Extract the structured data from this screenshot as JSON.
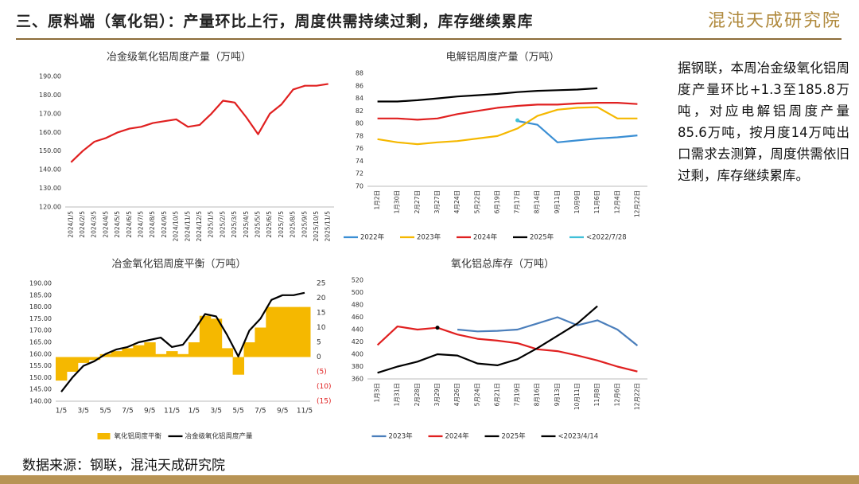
{
  "header": {
    "title": "三、原料端（氧化铝）：产量环比上行，周度供需持续过剩，库存继续累库",
    "logo": "混沌天成研究院"
  },
  "note": "据钢联，本周冶金级氧化铝周度产量环比+1.3至185.8万吨，对应电解铝周度产量85.6万吨，按月度14万吨出口需求去测算，周度供需依旧过剩，库存继续累库。",
  "footer": {
    "source": "数据来源：钢联，混沌天成研究院"
  },
  "chart_data": [
    {
      "type": "line",
      "title": "冶金级氧化铝周度产量（万吨）",
      "categories": [
        "2024/1/5",
        "2024/2/5",
        "2024/3/5",
        "2024/4/5",
        "2024/5/5",
        "2024/6/5",
        "2024/7/5",
        "2024/8/5",
        "2024/9/5",
        "2024/10/5",
        "2024/11/5",
        "2024/12/5",
        "2025/1/5",
        "2025/2/5",
        "2025/3/5",
        "2025/4/5",
        "2025/5/5",
        "2025/6/5",
        "2025/7/5",
        "2025/8/5",
        "2025/9/5",
        "2025/10/5",
        "2025/11/5"
      ],
      "series": [
        {
          "name": null,
          "color": "#e02020",
          "values": [
            144,
            150,
            155,
            157,
            160,
            162,
            163,
            165,
            166,
            167,
            163,
            164,
            170,
            177,
            176,
            168,
            159,
            170,
            175,
            183,
            185,
            185,
            186
          ]
        }
      ],
      "ylim": [
        120,
        190
      ],
      "yticks": [
        {
          "value": 120,
          "label": "120.00"
        },
        {
          "value": 130,
          "label": "130.00"
        },
        {
          "value": 140,
          "label": "140.00"
        },
        {
          "value": 150,
          "label": "150.00"
        },
        {
          "value": 160,
          "label": "160.00"
        },
        {
          "value": 170,
          "label": "170.00"
        },
        {
          "value": 180,
          "label": "180.00"
        },
        {
          "value": 190,
          "label": "190.00"
        }
      ]
    },
    {
      "type": "line",
      "title": "电解铝周度产量（万吨）",
      "categories": [
        "1月2日",
        "1月30日",
        "2月27日",
        "3月27日",
        "4月24日",
        "5月22日",
        "6月19日",
        "7月17日",
        "8月14日",
        "9月11日",
        "10月9日",
        "11月6日",
        "12月4日",
        "12月22日"
      ],
      "series": [
        {
          "name": "2022年",
          "color": "#3b8fd4",
          "values": [
            null,
            null,
            null,
            null,
            null,
            null,
            null,
            80.4,
            79.8,
            77.0,
            77.3,
            77.6,
            77.8,
            78.1
          ]
        },
        {
          "name": "2023年",
          "color": "#f5b800",
          "values": [
            77.5,
            77.0,
            76.7,
            77.0,
            77.2,
            77.6,
            78.0,
            79.2,
            81.2,
            82.2,
            82.5,
            82.6,
            80.8,
            80.8
          ]
        },
        {
          "name": "2024年",
          "color": "#e02020",
          "values": [
            80.8,
            80.8,
            80.6,
            80.8,
            81.5,
            82.0,
            82.5,
            82.8,
            83.0,
            83.0,
            83.2,
            83.3,
            83.3,
            83.1
          ]
        },
        {
          "name": "2025年",
          "color": "#000000",
          "values": [
            83.5,
            83.5,
            83.7,
            84.0,
            84.3,
            84.5,
            84.7,
            85.0,
            85.2,
            85.3,
            85.4,
            85.6,
            null,
            null
          ]
        },
        {
          "name": "<2022/7/28",
          "color": "#40c0d8",
          "values": [
            null,
            null,
            null,
            null,
            null,
            null,
            null,
            80.5,
            null,
            null,
            null,
            null,
            null,
            null
          ]
        }
      ],
      "ylim": [
        70,
        88
      ],
      "yticks": [
        70,
        72,
        74,
        76,
        78,
        80,
        82,
        84,
        86,
        88
      ]
    },
    {
      "type": "combo",
      "title": "冶金氧化铝周度平衡（万吨）",
      "categories": [
        "1/5",
        null,
        "3/5",
        null,
        "5/5",
        null,
        "7/5",
        null,
        "9/5",
        null,
        "11/5",
        null,
        "1/5",
        null,
        "3/5",
        null,
        "5/5",
        null,
        "7/5",
        null,
        "9/5",
        null,
        "11/5"
      ],
      "series": [
        {
          "name": "氧化铝周度平衡",
          "type": "bar",
          "axis": "y2",
          "color": "#f5b800",
          "values": [
            -8,
            -5,
            -2,
            -1,
            1,
            2,
            3,
            4,
            5,
            1,
            2,
            1,
            5,
            14,
            13,
            3,
            -6,
            5,
            10,
            17,
            17,
            17,
            17
          ]
        },
        {
          "name": "冶金级氧化铝周度产量",
          "type": "line",
          "color": "#000000",
          "values": [
            144,
            150,
            155,
            157,
            160,
            162,
            163,
            165,
            166,
            167,
            163,
            164,
            170,
            177,
            176,
            168,
            159,
            170,
            175,
            183,
            185,
            185,
            186
          ]
        }
      ],
      "ylim": [
        140,
        190
      ],
      "yticks": [
        {
          "value": 140,
          "label": "140.00"
        },
        {
          "value": 145,
          "label": "145.00"
        },
        {
          "value": 150,
          "label": "150.00"
        },
        {
          "value": 155,
          "label": "155.00"
        },
        {
          "value": 160,
          "label": "160.00"
        },
        {
          "value": 165,
          "label": "165.00"
        },
        {
          "value": 170,
          "label": "170.00"
        },
        {
          "value": 175,
          "label": "175.00"
        },
        {
          "value": 180,
          "label": "180.00"
        },
        {
          "value": 185,
          "label": "185.00"
        },
        {
          "value": 190,
          "label": "190.00"
        }
      ],
      "y2lim": [
        -15,
        25
      ],
      "y2ticks": [
        {
          "value": -15,
          "label": "(15)"
        },
        {
          "value": -10,
          "label": "(10)"
        },
        {
          "value": -5,
          "label": "(5)"
        },
        0,
        5,
        10,
        15,
        20,
        25
      ]
    },
    {
      "type": "line",
      "title": "氧化铝总库存（万吨）",
      "categories": [
        "1月3日",
        "1月31日",
        "2月28日",
        "3月29日",
        "4月26日",
        "5月24日",
        "6月21日",
        "7月19日",
        "8月16日",
        "9月13日",
        "10月11日",
        "11月8日",
        "12月6日",
        "12月22日"
      ],
      "series": [
        {
          "name": "2023年",
          "color": "#4a7ebb",
          "values": [
            null,
            null,
            null,
            null,
            440,
            437,
            438,
            440,
            450,
            460,
            447,
            455,
            440,
            414
          ]
        },
        {
          "name": "2024年",
          "color": "#e02020",
          "values": [
            415,
            445,
            440,
            443,
            432,
            425,
            422,
            418,
            408,
            405,
            398,
            390,
            380,
            372
          ]
        },
        {
          "name": "2025年",
          "color": "#000000",
          "values": [
            370,
            380,
            388,
            400,
            398,
            385,
            382,
            392,
            410,
            430,
            450,
            478,
            null,
            null
          ]
        },
        {
          "name": "<2023/4/14",
          "color": "#000000",
          "values": [
            null,
            null,
            null,
            443,
            null,
            null,
            null,
            null,
            null,
            null,
            null,
            null,
            null,
            null
          ]
        }
      ],
      "ylim": [
        360,
        520
      ],
      "yticks": [
        360,
        380,
        400,
        420,
        440,
        460,
        480,
        500,
        520
      ]
    }
  ]
}
